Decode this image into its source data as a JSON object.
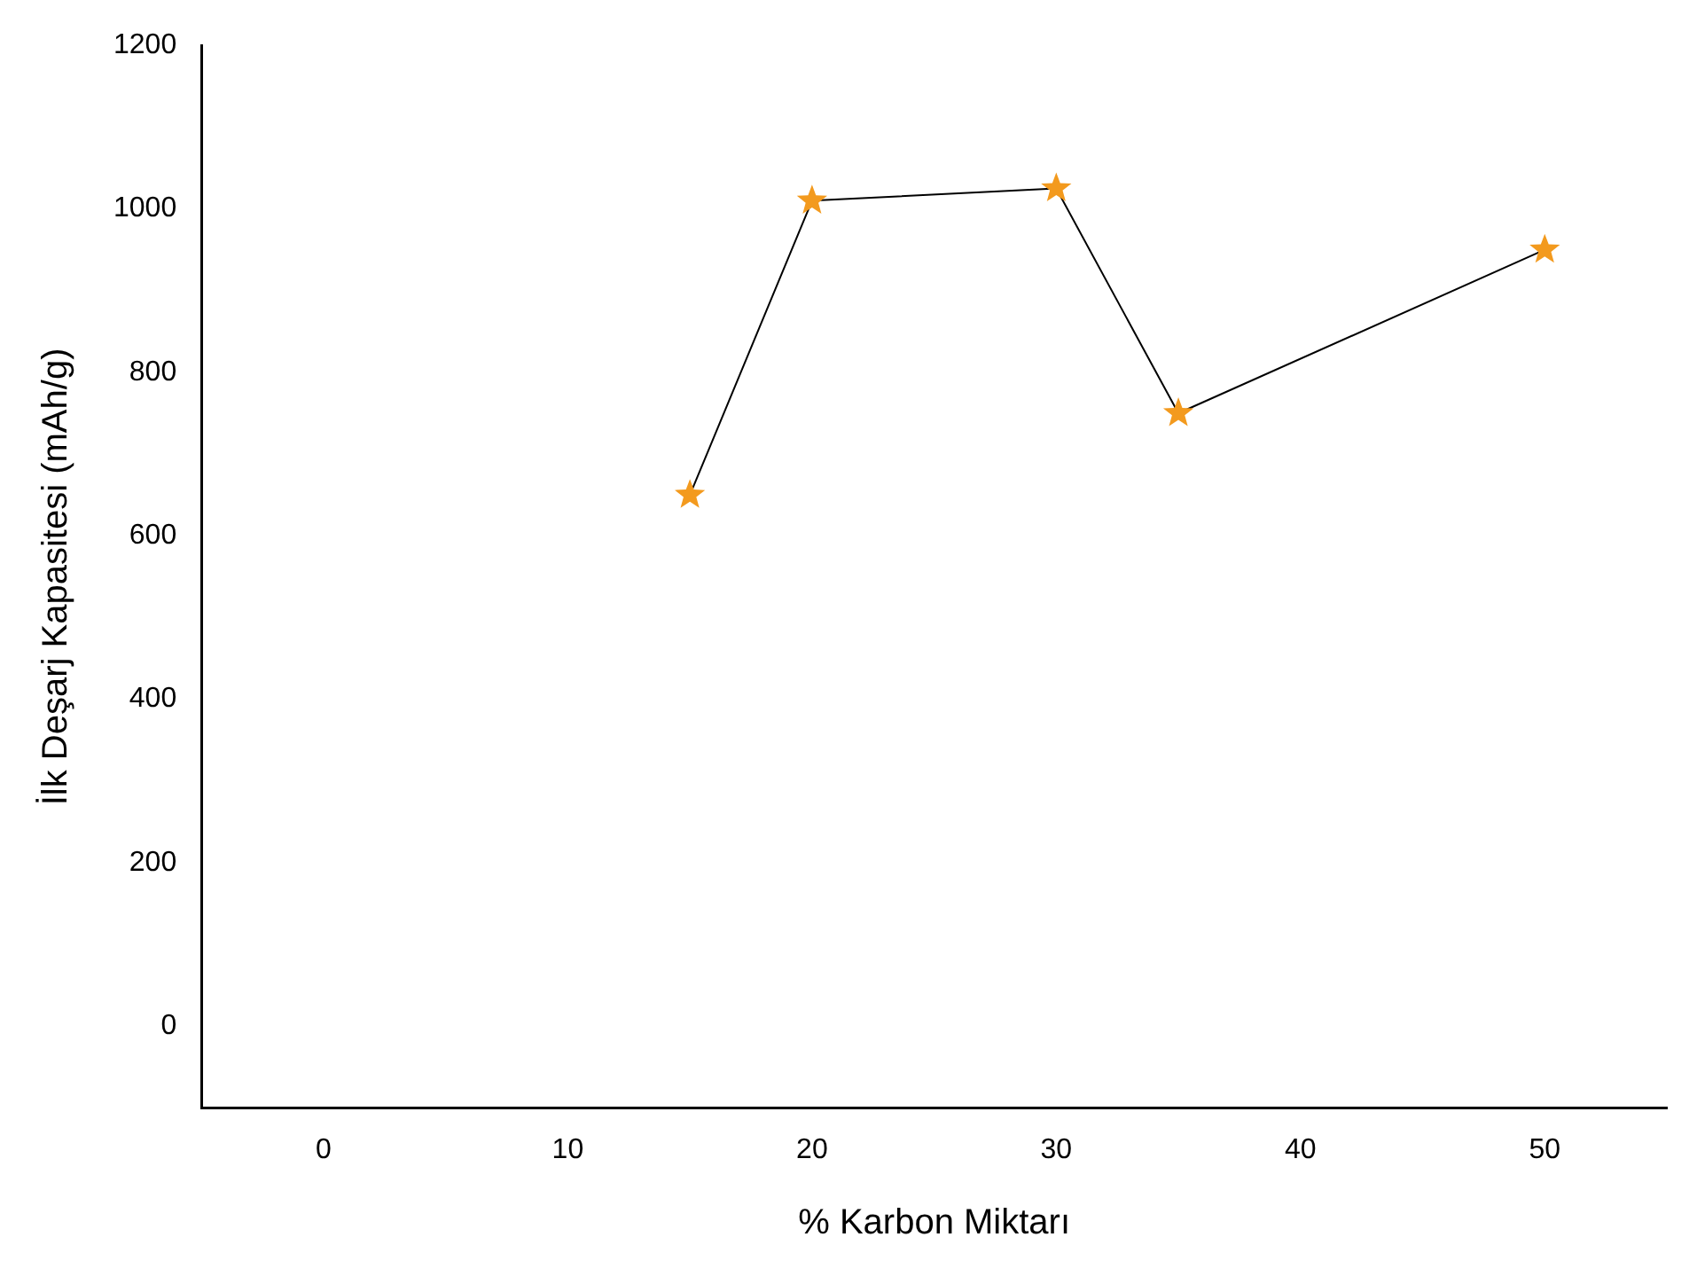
{
  "chart_data": {
    "type": "line",
    "xlabel": "% Karbon Miktarı",
    "ylabel": "İlk Deşarj Kapasitesi (mAh/g)",
    "x": [
      15,
      20,
      30,
      35,
      50
    ],
    "series": [
      {
        "color": "#f39a1e",
        "values": [
          650,
          1010,
          1025,
          750,
          950
        ]
      }
    ],
    "xlim": [
      -5,
      55
    ],
    "xticks": [
      0,
      10,
      20,
      30,
      40,
      50
    ],
    "ylim": [
      -100,
      1200
    ],
    "yticks": [
      0,
      200,
      400,
      600,
      800,
      1000,
      1200
    ],
    "grid": false,
    "legend": false,
    "marker": "star",
    "line_style": "solid"
  }
}
